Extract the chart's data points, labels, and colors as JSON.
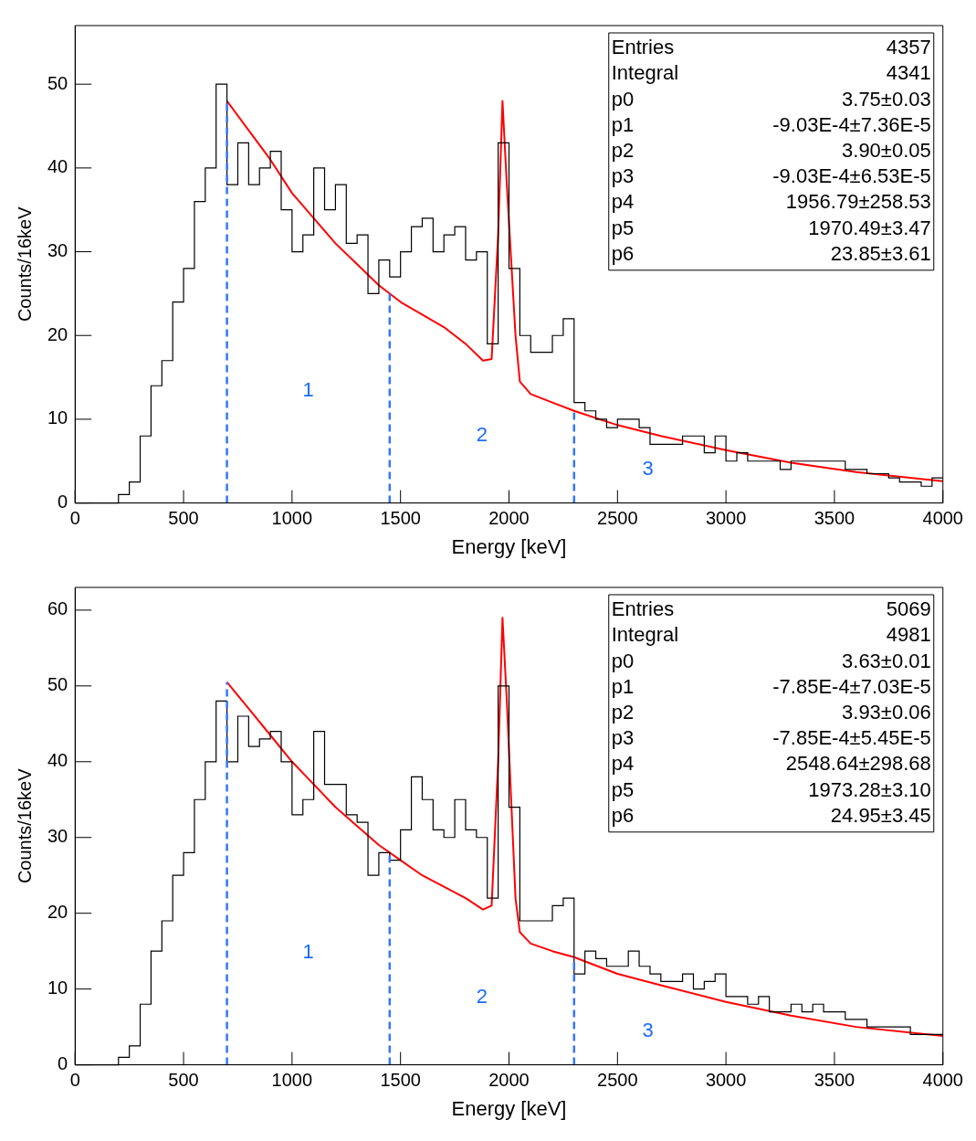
{
  "chart_data": [
    {
      "type": "histogram",
      "xlabel": "Energy [keV]",
      "ylabel": "Counts/16keV",
      "xlim": [
        0,
        4000
      ],
      "ylim": [
        0,
        57
      ],
      "xticks": [
        0,
        500,
        1000,
        1500,
        2000,
        2500,
        3000,
        3500,
        4000
      ],
      "yticks": [
        0,
        10,
        20,
        30,
        40,
        50
      ],
      "grid": false,
      "legend": false,
      "series": [
        {
          "type": "histogram",
          "color": "#000000",
          "bins": [
            0,
            50,
            100,
            150,
            200,
            250,
            300,
            350,
            400,
            450,
            500,
            550,
            600,
            650,
            700,
            750,
            800,
            850,
            900,
            950,
            1000,
            1050,
            1100,
            1150,
            1200,
            1250,
            1300,
            1350,
            1400,
            1450,
            1500,
            1550,
            1600,
            1650,
            1700,
            1750,
            1800,
            1850,
            1900,
            1950,
            2000,
            2050,
            2100,
            2150,
            2200,
            2250,
            2300,
            2350,
            2400,
            2450,
            2500,
            2550,
            2600,
            2650,
            2700,
            2750,
            2800,
            2850,
            2900,
            2950,
            3000,
            3050,
            3100,
            3150,
            3200,
            3250,
            3300,
            3350,
            3400,
            3450,
            3500,
            3550,
            3600,
            3650,
            3700,
            3750,
            3800,
            3850,
            3900,
            3950,
            4000
          ],
          "values": [
            0,
            0,
            0,
            0,
            1,
            2.5,
            8,
            14,
            17,
            24,
            28,
            36,
            40,
            50,
            38,
            43,
            38,
            40,
            42,
            35,
            30,
            32,
            40,
            35,
            38,
            31,
            32,
            25,
            29,
            27,
            30,
            33,
            34,
            30,
            32,
            33,
            29,
            30,
            19,
            43,
            28,
            20,
            18,
            18,
            20,
            22,
            12,
            11,
            10,
            9,
            10,
            10,
            9,
            7,
            7,
            7,
            8,
            8,
            6,
            8,
            5,
            6,
            5,
            5,
            5,
            4,
            5,
            5,
            5,
            5,
            5,
            4,
            4,
            3.5,
            3.5,
            3,
            2.5,
            2.5,
            2,
            3
          ]
        },
        {
          "type": "line",
          "color": "#ff0000",
          "marker": "none",
          "x": [
            700,
            800,
            900,
            1000,
            1100,
            1200,
            1300,
            1400,
            1500,
            1600,
            1700,
            1800,
            1880,
            1920,
            1950,
            1970,
            1990,
            2030,
            2050,
            2100,
            2200,
            2300,
            2500,
            2700,
            3000,
            3300,
            3600,
            4000
          ],
          "values": [
            48,
            44.5,
            41,
            37,
            34,
            31,
            28.5,
            26,
            24,
            22.5,
            21,
            19,
            17,
            17.2,
            32,
            48,
            38,
            20,
            14.5,
            13,
            12,
            11,
            9.3,
            8,
            6.3,
            4.8,
            3.7,
            2.6
          ]
        }
      ],
      "ref_lines": [
        {
          "axis": "x",
          "value": 700,
          "color": "#3377ff",
          "line_style": "dashed"
        },
        {
          "axis": "x",
          "value": 1450,
          "color": "#3377ff",
          "line_style": "dashed"
        },
        {
          "axis": "x",
          "value": 2300,
          "color": "#3377ff",
          "line_style": "dashed"
        }
      ],
      "annotations": [
        "1",
        "2",
        "3",
        "Entries",
        "4357",
        "Integral",
        "4341",
        "p0",
        "3.75±0.03",
        "p1",
        "-9.03E-4±7.36E-5",
        "p2",
        "3.90±0.05",
        "p3",
        "-9.03E-4±6.53E-5",
        "p4",
        "1956.79±258.53",
        "p5",
        "1970.49±3.47",
        "p6",
        "23.85±3.61"
      ]
    },
    {
      "type": "histogram",
      "xlabel": "Energy [keV]",
      "ylabel": "Counts/16keV",
      "xlim": [
        0,
        4000
      ],
      "ylim": [
        0,
        63
      ],
      "xticks": [
        0,
        500,
        1000,
        1500,
        2000,
        2500,
        3000,
        3500,
        4000
      ],
      "yticks": [
        0,
        10,
        20,
        30,
        40,
        50,
        60
      ],
      "grid": false,
      "legend": false,
      "series": [
        {
          "type": "histogram",
          "color": "#000000",
          "bins": [
            0,
            50,
            100,
            150,
            200,
            250,
            300,
            350,
            400,
            450,
            500,
            550,
            600,
            650,
            700,
            750,
            800,
            850,
            900,
            950,
            1000,
            1050,
            1100,
            1150,
            1200,
            1250,
            1300,
            1350,
            1400,
            1450,
            1500,
            1550,
            1600,
            1650,
            1700,
            1750,
            1800,
            1850,
            1900,
            1950,
            2000,
            2050,
            2100,
            2150,
            2200,
            2250,
            2300,
            2350,
            2400,
            2450,
            2500,
            2550,
            2600,
            2650,
            2700,
            2750,
            2800,
            2850,
            2900,
            2950,
            3000,
            3050,
            3100,
            3150,
            3200,
            3250,
            3300,
            3350,
            3400,
            3450,
            3500,
            3550,
            3600,
            3650,
            3700,
            3750,
            3800,
            3850,
            3900,
            3950,
            4000
          ],
          "values": [
            0,
            0,
            0,
            0,
            1,
            2.5,
            8,
            15,
            19,
            25,
            28,
            35,
            40,
            48,
            40,
            46,
            42,
            43,
            44,
            40,
            33,
            35,
            44,
            37,
            37,
            33,
            32,
            25,
            28,
            27,
            31,
            38,
            35,
            31,
            30,
            35,
            31,
            30,
            22,
            50,
            34,
            19,
            19,
            19,
            21,
            22,
            12,
            15,
            14,
            13,
            13,
            15,
            13,
            12,
            11,
            11,
            12,
            10,
            11,
            12,
            9,
            9,
            8,
            9,
            7,
            7,
            8,
            7,
            8,
            7,
            7,
            6,
            6,
            5,
            5,
            5,
            5,
            4,
            4,
            4
          ]
        },
        {
          "type": "line",
          "color": "#ff0000",
          "marker": "none",
          "x": [
            700,
            800,
            900,
            1000,
            1100,
            1200,
            1300,
            1400,
            1500,
            1600,
            1700,
            1800,
            1880,
            1920,
            1950,
            1970,
            1990,
            2030,
            2050,
            2100,
            2200,
            2300,
            2500,
            2700,
            3000,
            3300,
            3600,
            4000
          ],
          "values": [
            50.5,
            47,
            43.5,
            40,
            37,
            34,
            31.5,
            29,
            27,
            25,
            23.5,
            22,
            20.5,
            21,
            40,
            59,
            48,
            22,
            17.5,
            16,
            15,
            14.2,
            12,
            10.5,
            8.3,
            6.5,
            5,
            3.8
          ]
        }
      ],
      "ref_lines": [
        {
          "axis": "x",
          "value": 700,
          "color": "#3377ff",
          "line_style": "dashed"
        },
        {
          "axis": "x",
          "value": 1450,
          "color": "#3377ff",
          "line_style": "dashed"
        },
        {
          "axis": "x",
          "value": 2300,
          "color": "#3377ff",
          "line_style": "dashed"
        }
      ],
      "annotations": [
        "1",
        "2",
        "3",
        "Entries",
        "5069",
        "Integral",
        "4981",
        "p0",
        "3.63±0.01",
        "p1",
        "-7.85E-4±7.03E-5",
        "p2",
        "3.93±0.06",
        "p3",
        "-7.85E-4±5.45E-5",
        "p4",
        "2548.64±298.68",
        "p5",
        "1973.28±3.10",
        "p6",
        "24.95±3.45"
      ]
    }
  ]
}
